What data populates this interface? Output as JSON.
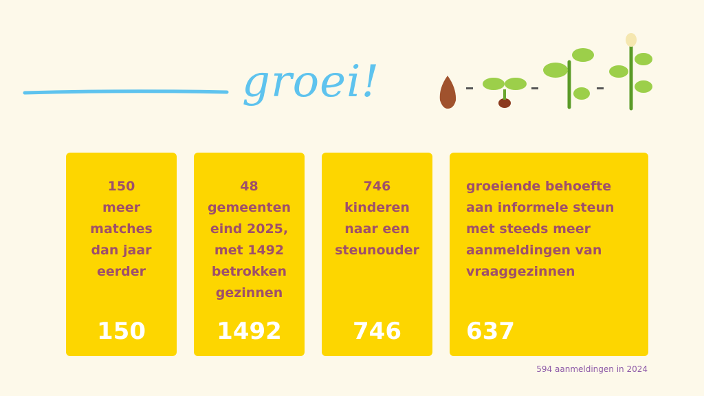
{
  "header": {
    "title": "groei!"
  },
  "cards": [
    {
      "lines": [
        "150",
        "meer",
        "matches",
        "dan jaar",
        "eerder"
      ],
      "number": 150,
      "align": "center"
    },
    {
      "lines": [
        "48",
        "gemeenten",
        "eind 2025,",
        "met 1492",
        "betrokken",
        "gezinnen"
      ],
      "number": 1492,
      "align": "center"
    },
    {
      "lines": [
        "746",
        "kinderen",
        "naar een",
        "steunouder"
      ],
      "number": 746,
      "align": "center"
    },
    {
      "lines": [
        "groeiende behoefte",
        "aan informele steun",
        "met steeds meer",
        "aanmeldingen van",
        "vraaggezinnen"
      ],
      "number": 637,
      "align": "left"
    }
  ],
  "footnote": "594 aanmeldingen in 2024"
}
